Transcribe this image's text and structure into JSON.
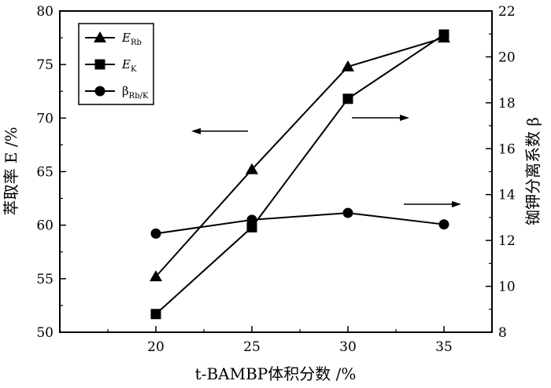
{
  "chart_data": {
    "type": "line",
    "x": [
      20,
      25,
      30,
      35
    ],
    "xlabel": "t-BAMBP体积分数 /%",
    "ylabel_left": "萃取率 E /%",
    "ylabel_right": "铷钾分离系数 β",
    "xlim": [
      15,
      37.5
    ],
    "ylim_left": [
      50,
      80
    ],
    "ylim_right": [
      8,
      22
    ],
    "x_ticks": [
      "20",
      "25",
      "30",
      "35"
    ],
    "y_ticks_left": [
      "50",
      "55",
      "60",
      "65",
      "70",
      "75",
      "80"
    ],
    "y_ticks_right": [
      "8",
      "10",
      "12",
      "14",
      "16",
      "18",
      "20",
      "22"
    ],
    "grid": false,
    "legend_position": "top-left",
    "series": [
      {
        "key": "erb",
        "name_main": "E",
        "name_sub": "Rb",
        "marker": "triangle",
        "axis": "left",
        "values": [
          55.2,
          65.2,
          74.8,
          77.5
        ]
      },
      {
        "key": "ek",
        "name_main": "E",
        "name_sub": "K",
        "marker": "square",
        "axis": "left",
        "values": [
          51.7,
          59.8,
          71.8,
          77.8
        ]
      },
      {
        "key": "beta",
        "name_main": "β",
        "name_sub": "Rb/K",
        "marker": "circle",
        "axis": "right",
        "values": [
          12.3,
          12.9,
          13.2,
          12.7
        ]
      }
    ],
    "annotations": [
      {
        "kind": "arrow",
        "direction": "left",
        "target_axis": "left"
      },
      {
        "kind": "arrow",
        "direction": "right",
        "target_axis": "right"
      },
      {
        "kind": "arrow",
        "direction": "right",
        "target_axis": "right"
      }
    ]
  }
}
